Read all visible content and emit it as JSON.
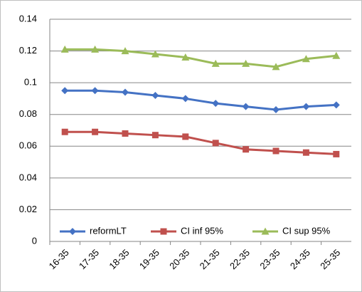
{
  "chart_data": {
    "type": "line",
    "categories": [
      "16-35",
      "17-35",
      "18-35",
      "19-35",
      "20-35",
      "21-35",
      "22-35",
      "23-35",
      "24-35",
      "25-35"
    ],
    "series": [
      {
        "name": "reformLT",
        "color": "#4472c4",
        "marker": "diamond",
        "values": [
          0.095,
          0.095,
          0.094,
          0.092,
          0.09,
          0.087,
          0.085,
          0.083,
          0.085,
          0.086
        ]
      },
      {
        "name": "CI inf 95%",
        "color": "#c0504d",
        "marker": "square",
        "values": [
          0.069,
          0.069,
          0.068,
          0.067,
          0.066,
          0.062,
          0.058,
          0.057,
          0.056,
          0.055
        ]
      },
      {
        "name": "CI sup 95%",
        "color": "#9bbb59",
        "marker": "triangle",
        "values": [
          0.121,
          0.121,
          0.12,
          0.118,
          0.116,
          0.112,
          0.112,
          0.11,
          0.115,
          0.117
        ]
      }
    ],
    "ylim": [
      0,
      0.14
    ],
    "yticks": [
      0,
      0.02,
      0.04,
      0.06,
      0.08,
      0.1,
      0.12,
      0.14
    ],
    "grid": true,
    "legend": "bottom"
  }
}
